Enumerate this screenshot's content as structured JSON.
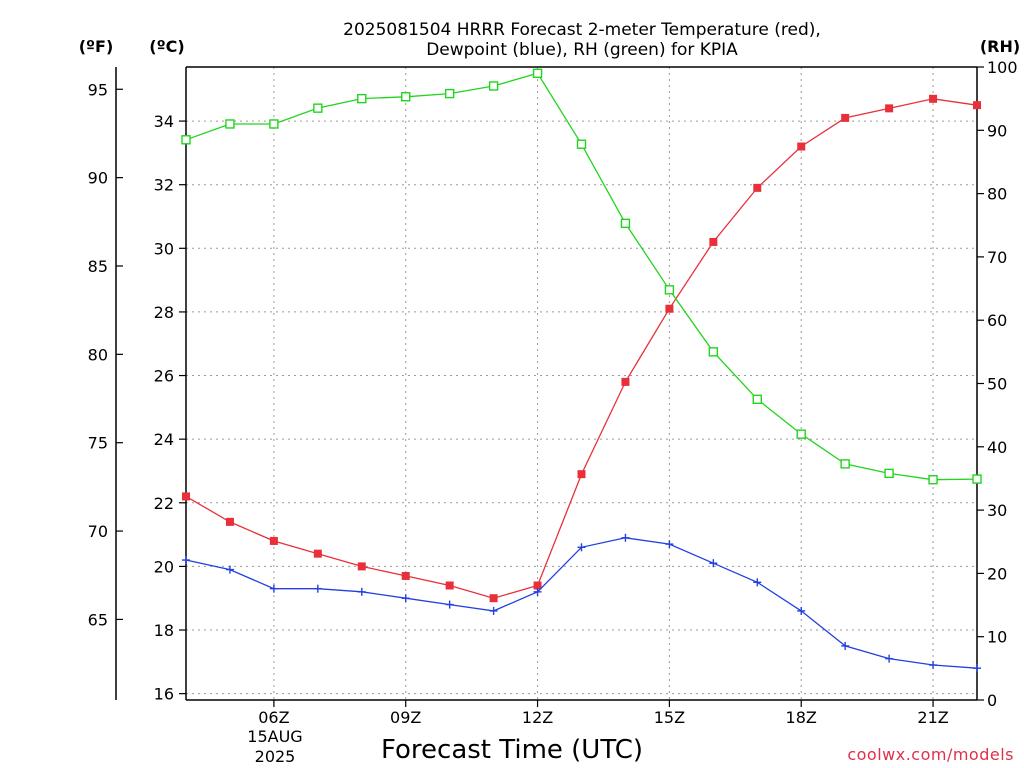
{
  "chart_data": {
    "type": "line",
    "title_line1": "2025081504 HRRR Forecast 2-meter Temperature (red),",
    "title_line2": "Dewpoint (blue), RH (green) for KPIA",
    "xlabel": "Forecast Time (UTC)",
    "units": {
      "fahrenheit": "(ºF)",
      "celsius": "(ºC)",
      "rh": "(RH)"
    },
    "credit": "coolwx.com/models",
    "date_label": {
      "day": "15AUG",
      "year": "2025"
    },
    "x_hours": [
      4,
      5,
      6,
      7,
      8,
      9,
      10,
      11,
      12,
      13,
      14,
      15,
      16,
      17,
      18,
      19,
      20,
      21,
      22
    ],
    "x_range": [
      4,
      22
    ],
    "x_ticks": [
      {
        "hour": 6,
        "label": "06Z"
      },
      {
        "hour": 9,
        "label": "09Z"
      },
      {
        "hour": 12,
        "label": "12Z"
      },
      {
        "hour": 15,
        "label": "15Z"
      },
      {
        "hour": 18,
        "label": "18Z"
      },
      {
        "hour": 21,
        "label": "21Z"
      }
    ],
    "celsius_axis": {
      "range": [
        15.8,
        35.7
      ],
      "ticks": [
        16,
        18,
        20,
        22,
        24,
        26,
        28,
        30,
        32,
        34
      ]
    },
    "fahrenheit_axis": {
      "ticks": [
        65,
        70,
        75,
        80,
        85,
        90,
        95
      ]
    },
    "rh_axis": {
      "range": [
        0,
        100
      ],
      "ticks": [
        0,
        10,
        20,
        30,
        40,
        50,
        60,
        70,
        80,
        90,
        100
      ]
    },
    "grid": true,
    "series": [
      {
        "name": "Temperature",
        "unit": "C",
        "color": "#e8303a",
        "marker": "filled-square",
        "values": [
          22.2,
          21.4,
          20.8,
          20.4,
          20.0,
          19.7,
          19.4,
          19.0,
          19.4,
          22.9,
          25.8,
          28.1,
          30.2,
          31.9,
          33.2,
          34.1,
          34.4,
          34.7,
          34.5
        ]
      },
      {
        "name": "Dewpoint",
        "unit": "C",
        "color": "#2240e0",
        "marker": "plus",
        "values": [
          20.2,
          19.9,
          19.3,
          19.3,
          19.2,
          19.0,
          18.8,
          18.6,
          19.2,
          20.6,
          20.9,
          20.7,
          20.1,
          19.5,
          18.6,
          17.5,
          17.1,
          16.9,
          16.8
        ]
      },
      {
        "name": "RH",
        "unit": "%",
        "color": "#22d41e",
        "marker": "hollow-square",
        "values": [
          88.5,
          91.0,
          91.0,
          93.5,
          95.0,
          95.3,
          95.8,
          97.0,
          99.0,
          87.8,
          75.3,
          64.8,
          55.0,
          47.5,
          42.0,
          37.3,
          35.8,
          34.8,
          34.9
        ]
      }
    ]
  }
}
